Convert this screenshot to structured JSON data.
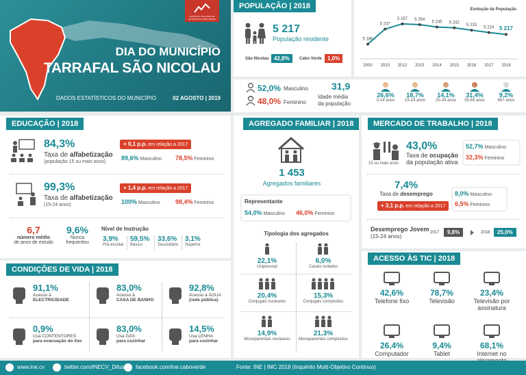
{
  "banner": {
    "title_line1": "DIA DO MUNICÍPIO",
    "title_line2": "TARRAFAL SÃO NICOLAU",
    "subtitle": "DADOS ESTATÍSTICOS DO MUNICÍPIO",
    "date": "02 AGOSTO | 2019",
    "logo_text": "INSTITUTO NACIONAL DE ESTATÍSTICA CABO VERDE"
  },
  "populacao": {
    "header": "POPULAÇÃO | 2018",
    "value": "5 217",
    "label": "População residente",
    "sn_label": "São Nicolau",
    "sn_value": "42,8%",
    "cv_label": "Cabo Verde",
    "cv_value": "1,0%",
    "masc_value": "52,0%",
    "masc_label": "Masculino",
    "fem_value": "48,0%",
    "fem_label": "Feminino",
    "idade_value": "31,9",
    "idade_label1": "Idade média",
    "idade_label2": "da população",
    "age_groups": [
      {
        "value": "26,6%",
        "label": "0-14 anos"
      },
      {
        "value": "18,7%",
        "label": "15-24 anos"
      },
      {
        "value": "14,1%",
        "label": "25-34 anos"
      },
      {
        "value": "31,4%",
        "label": "35-64 anos"
      },
      {
        "value": "9,2%",
        "label": "65+ anos"
      }
    ]
  },
  "chart_data": {
    "type": "line",
    "title": "Evolução da População",
    "x": [
      "2000",
      "2010",
      "2012",
      "2013",
      "2014",
      "2015",
      "2016",
      "2017",
      "2018"
    ],
    "values": [
      5180,
      5237,
      5257,
      5254,
      5245,
      5242,
      5233,
      5224,
      5217
    ],
    "labels": [
      "5 180",
      "5 237",
      "5 257",
      "5 254",
      "5 245",
      "5 242",
      "5 233",
      "5 224",
      "5 217"
    ],
    "ylim": [
      5150,
      5280
    ],
    "color": "#1a8a94",
    "last_color": "#1a8a94"
  },
  "educacao": {
    "header": "EDUCAÇÃO | 2018",
    "alf1_value": "84,3%",
    "alf1_label_a": "Taxa de ",
    "alf1_label_b": "alfabetização",
    "alf1_sub": "(população 15 ou mais anos)",
    "alf1_badge_a": "+ 0,1 p.p.",
    "alf1_badge_b": " em relação a 2017",
    "alf1_masc": "89,6%",
    "alf1_fem": "78,5%",
    "alf2_value": "99,3%",
    "alf2_label_a": "Taxa de ",
    "alf2_label_b": "alfabetização",
    "alf2_sub": "(15-24 anos)",
    "alf2_badge_a": "+ 1,4 p.p.",
    "alf2_badge_b": " em relação a 2017",
    "alf2_masc": "100%",
    "alf2_fem": "98,4%",
    "masc_label": "Masculino",
    "fem_label": "Feminino",
    "anos_value": "6,7",
    "anos_label1": "número médio",
    "anos_label2": "de anos de estudo",
    "nunca_value": "9,6%",
    "nunca_label1": "Nunca",
    "nunca_label2": "frequentou",
    "nivel_title": "Nível de Instrução",
    "niveis": [
      {
        "value": "3,9%",
        "label": "Pré-escolar"
      },
      {
        "value": "59,5%",
        "label": "Básico"
      },
      {
        "value": "33,6%",
        "label": "Secundário"
      },
      {
        "value": "3,1%",
        "label": "Superior"
      }
    ]
  },
  "agregado": {
    "header": "AGREGADO FAMILIAR | 2018",
    "value": "1 453",
    "label": "Agregados familiares",
    "rep_title": "Representante",
    "rep_masc": "54,0%",
    "rep_fem": "46,0%",
    "masc_label": "Masculino",
    "fem_label": "Feminino",
    "tipologia_title": "Tipologia dos agregados",
    "tipos": [
      {
        "value": "22,1%",
        "label": "Unipessoal"
      },
      {
        "value": "6,0%",
        "label": "Casais isolados"
      },
      {
        "value": "20,4%",
        "label": "Conjugais nucleares"
      },
      {
        "value": "15,3%",
        "label": "Conjugais compósitos"
      },
      {
        "value": "14,9%",
        "label": "Monoparentais nucleares"
      },
      {
        "value": "21,3%",
        "label": "Monoparentais compósitos"
      }
    ]
  },
  "mercado": {
    "header": "MERCADO DE TRABALHO | 2018",
    "ocup_value": "43,0%",
    "ocup_label_a": "Taxa de ",
    "ocup_label_b": "ocupação",
    "ocup_label_c": "da população ativa",
    "ocup_icon_label": "15 ou mais anos",
    "ocup_masc": "52,7%",
    "ocup_fem": "32,3%",
    "desemp_value": "7,4%",
    "desemp_label_a": "Taxa de ",
    "desemp_label_b": "desemprego",
    "desemp_badge_a": "+ 3,1 p.p.",
    "desemp_badge_b": " em relação a 2017",
    "desemp_masc": "8,0%",
    "desemp_fem": "6,5%",
    "masc_label": "Masculino",
    "fem_label": "Feminino",
    "jovem_label1": "Desemprego Jovem",
    "jovem_label2": "(15-24 anos)",
    "jovem_2017_year": "2017",
    "jovem_2017_value": "9,8%",
    "jovem_2018_year": "2018",
    "jovem_2018_value": "25,0%"
  },
  "condicoes": {
    "header": "CONDIÇÕES DE VIDA | 2018",
    "items": [
      {
        "value": "91,1%",
        "label1": "Acesso à",
        "label2": "ELECTRICIDADE"
      },
      {
        "value": "83,0%",
        "label1": "Acesso à",
        "label2": "CASA DE BANHO"
      },
      {
        "value": "92,8%",
        "label1": "Acesso à ÁGUA",
        "label2": "(rede pública)"
      },
      {
        "value": "0,9%",
        "label1": "Usa CONTENTORES",
        "label2": "para evacuação do lixo"
      },
      {
        "value": "83,0%",
        "label1": "Usa GÁS",
        "label2": "para cozinhar"
      },
      {
        "value": "14,5%",
        "label1": "Usa LENHA",
        "label2": "para cozinhar"
      }
    ]
  },
  "tic": {
    "header": "ACESSO ÀS TIC | 2018",
    "items": [
      {
        "value": "42,6%",
        "label1": "Telefone fixo",
        "label2": ""
      },
      {
        "value": "78,7%",
        "label1": "Televisão",
        "label2": ""
      },
      {
        "value": "23,4%",
        "label1": "Televisão por",
        "label2": "assinatura"
      },
      {
        "value": "26,4%",
        "label1": "Computador",
        "label2": ""
      },
      {
        "value": "9,4%",
        "label1": "Tablet",
        "label2": ""
      },
      {
        "value": "68,1%",
        "label1": "Internet no",
        "label2": "alojamento"
      }
    ]
  },
  "footer": {
    "web": "www.ine.cv",
    "twitter": "twitter.com/INECV_Difusao",
    "facebook": "facebook.com/ine.caboverde",
    "source": "Fonte: INE | IMC 2018 (Inquérito Multi-Objetivo Contínuo)"
  }
}
